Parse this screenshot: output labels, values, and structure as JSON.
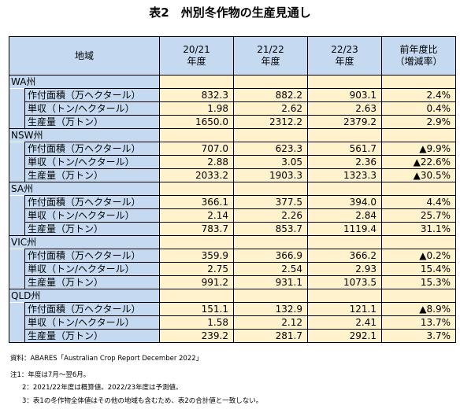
{
  "title": "表2　州別冬作物の生産見通し",
  "header": {
    "region": "地域",
    "y1_line1": "20/21",
    "y1_line2": "年度",
    "y2_line1": "21/22",
    "y2_line2": "年度",
    "y3_line1": "22/23",
    "y3_line2": "年度",
    "change_line1": "前年度比",
    "change_line2": "（増減率）"
  },
  "metric_labels": {
    "area": "作付面積（万ヘクタール）",
    "yield": "単収（トン/ヘクタール）",
    "production": "生産量（万トン）"
  },
  "regions": [
    {
      "name": "WA州",
      "area": [
        "832.3",
        "882.2",
        "903.1",
        "2.4%"
      ],
      "yield": [
        "1.98",
        "2.62",
        "2.63",
        "0.4%"
      ],
      "production": [
        "1650.0",
        "2312.2",
        "2379.2",
        "2.9%"
      ]
    },
    {
      "name": "NSW州",
      "area": [
        "707.0",
        "623.3",
        "561.7",
        "▲9.9%"
      ],
      "yield": [
        "2.88",
        "3.05",
        "2.36",
        "▲22.6%"
      ],
      "production": [
        "2033.2",
        "1903.3",
        "1323.3",
        "▲30.5%"
      ]
    },
    {
      "name": "SA州",
      "area": [
        "366.1",
        "377.5",
        "394.0",
        "4.4%"
      ],
      "yield": [
        "2.14",
        "2.26",
        "2.84",
        "25.7%"
      ],
      "production": [
        "783.7",
        "853.7",
        "1119.4",
        "31.1%"
      ]
    },
    {
      "name": "VIC州",
      "area": [
        "359.9",
        "366.9",
        "366.2",
        "▲0.2%"
      ],
      "yield": [
        "2.75",
        "2.54",
        "2.93",
        "15.4%"
      ],
      "production": [
        "991.2",
        "931.1",
        "1073.5",
        "15.3%"
      ]
    },
    {
      "name": "QLD州",
      "area": [
        "151.1",
        "132.9",
        "121.1",
        "▲8.9%"
      ],
      "yield": [
        "1.58",
        "2.12",
        "2.41",
        "13.7%"
      ],
      "production": [
        "239.2",
        "281.7",
        "292.1",
        "3.7%"
      ]
    }
  ],
  "notes": {
    "source": "資料：ABARES「Australian Crop Report December 2022」",
    "note1": "注1：年度は7月～翌6月。",
    "note2": "2：2021/22年度は概算値。2022/23年度は予測値。",
    "note3": "3：表1の冬作物全体値はその他の地域も含むため、表2の合計値と一致しない。"
  },
  "colors": {
    "header_bg": "#c5daf1",
    "value_bg": "#fff2cc",
    "border": "#000000"
  }
}
